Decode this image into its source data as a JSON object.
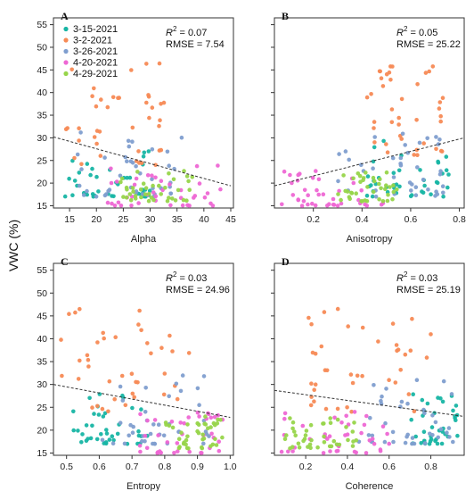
{
  "figure": {
    "ylabel": "VWC (%)"
  },
  "colors": {
    "3-15-2021": "#17b5a4",
    "3-2-2021": "#f78a55",
    "3-26-2021": "#7f9ecf",
    "4-20-2021": "#ee67d4",
    "4-29-2021": "#97d54a",
    "trend": "#333333"
  },
  "chart_data": [
    {
      "type": "scatter",
      "panel": "A",
      "xlabel": "Alpha",
      "xlim": [
        12,
        45.5
      ],
      "ylim": [
        14.5,
        56.5
      ],
      "xticks": [
        15,
        20,
        25,
        30,
        35,
        40,
        45
      ],
      "yticks": [
        15,
        20,
        25,
        30,
        35,
        40,
        45,
        50,
        55
      ],
      "r2": "0.07",
      "rmse": "7.54",
      "legend": [
        "3-15-2021",
        "3-2-2021",
        "3-26-2021",
        "4-20-2021",
        "4-29-2021"
      ],
      "legend_position": "top-left",
      "trend": {
        "x": [
          12,
          45
        ],
        "y": [
          30.2,
          19.4
        ]
      },
      "series": [
        {
          "name": "3-15-2021",
          "x_range": [
            14,
            30
          ],
          "y_range": [
            17,
            28
          ]
        },
        {
          "name": "3-2-2021",
          "x_range": [
            14,
            34
          ],
          "y_range": [
            24,
            47
          ]
        },
        {
          "name": "3-26-2021",
          "x_range": [
            16,
            36
          ],
          "y_range": [
            17,
            32
          ]
        },
        {
          "name": "4-20-2021",
          "x_range": [
            22,
            44
          ],
          "y_range": [
            15,
            24
          ]
        },
        {
          "name": "4-29-2021",
          "x_range": [
            24,
            38
          ],
          "y_range": [
            16,
            23
          ]
        }
      ]
    },
    {
      "type": "scatter",
      "panel": "B",
      "xlabel": "Anisotropy",
      "xlim": [
        0.04,
        0.82
      ],
      "ylim": [
        14.5,
        56.5
      ],
      "xticks": [
        0.2,
        0.4,
        0.6,
        0.8
      ],
      "yticks": [
        15,
        20,
        25,
        30,
        35,
        40,
        45,
        50,
        55
      ],
      "r2": "0.05",
      "rmse": "25.22",
      "trend": {
        "x": [
          0.04,
          0.82
        ],
        "y": [
          19.4,
          30.0
        ]
      },
      "series": [
        {
          "name": "3-15-2021",
          "x_range": [
            0.42,
            0.76
          ],
          "y_range": [
            17,
            30
          ]
        },
        {
          "name": "3-2-2021",
          "x_range": [
            0.42,
            0.74
          ],
          "y_range": [
            24,
            47
          ]
        },
        {
          "name": "3-26-2021",
          "x_range": [
            0.3,
            0.74
          ],
          "y_range": [
            17,
            32
          ]
        },
        {
          "name": "4-20-2021",
          "x_range": [
            0.05,
            0.5
          ],
          "y_range": [
            15,
            24
          ]
        },
        {
          "name": "4-29-2021",
          "x_range": [
            0.3,
            0.55
          ],
          "y_range": [
            16,
            23
          ]
        }
      ]
    },
    {
      "type": "scatter",
      "panel": "C",
      "xlabel": "Entropy",
      "xlim": [
        0.46,
        1.01
      ],
      "ylim": [
        14.5,
        56.5
      ],
      "xticks": [
        0.5,
        0.6,
        0.7,
        0.8,
        0.9,
        1.0
      ],
      "yticks": [
        15,
        20,
        25,
        30,
        35,
        40,
        45,
        50,
        55
      ],
      "r2": "0.03",
      "rmse": "24.96",
      "trend": {
        "x": [
          0.46,
          1.0
        ],
        "y": [
          30.0,
          22.8
        ]
      },
      "series": [
        {
          "name": "3-15-2021",
          "x_range": [
            0.52,
            0.75
          ],
          "y_range": [
            17,
            28
          ]
        },
        {
          "name": "3-2-2021",
          "x_range": [
            0.47,
            0.88
          ],
          "y_range": [
            24,
            47
          ]
        },
        {
          "name": "3-26-2021",
          "x_range": [
            0.6,
            0.94
          ],
          "y_range": [
            17,
            32
          ]
        },
        {
          "name": "4-20-2021",
          "x_range": [
            0.72,
            0.98
          ],
          "y_range": [
            15,
            24
          ]
        },
        {
          "name": "4-29-2021",
          "x_range": [
            0.8,
            0.98
          ],
          "y_range": [
            16,
            23
          ]
        }
      ]
    },
    {
      "type": "scatter",
      "panel": "D",
      "xlabel": "Coherence",
      "xlim": [
        0.05,
        0.96
      ],
      "ylim": [
        14.5,
        56.5
      ],
      "xticks": [
        0.2,
        0.4,
        0.6,
        0.8
      ],
      "yticks": [
        15,
        20,
        25,
        30,
        35,
        40,
        45,
        50,
        55
      ],
      "r2": "0.03",
      "rmse": "25.19",
      "trend": {
        "x": [
          0.05,
          0.96
        ],
        "y": [
          28.7,
          23.0
        ]
      },
      "series": [
        {
          "name": "3-15-2021",
          "x_range": [
            0.7,
            0.94
          ],
          "y_range": [
            17,
            28
          ]
        },
        {
          "name": "3-2-2021",
          "x_range": [
            0.2,
            0.8
          ],
          "y_range": [
            24,
            47
          ]
        },
        {
          "name": "3-26-2021",
          "x_range": [
            0.45,
            0.92
          ],
          "y_range": [
            17,
            32
          ]
        },
        {
          "name": "4-20-2021",
          "x_range": [
            0.08,
            0.6
          ],
          "y_range": [
            15,
            24
          ]
        },
        {
          "name": "4-29-2021",
          "x_range": [
            0.1,
            0.45
          ],
          "y_range": [
            16,
            23
          ]
        }
      ]
    }
  ]
}
